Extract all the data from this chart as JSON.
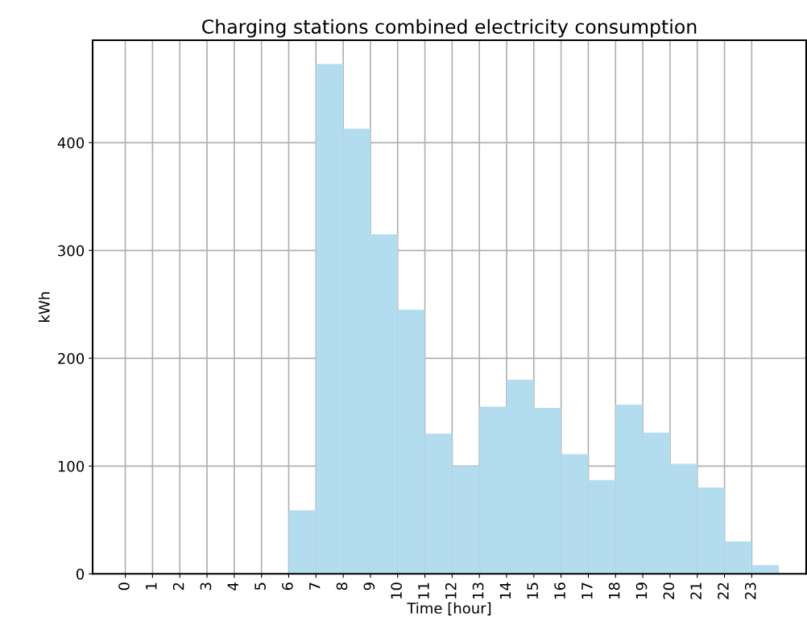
{
  "chart_data": {
    "type": "histogram",
    "title": "Charging stations combined electricity consumption",
    "xlabel": "Time [hour]",
    "ylabel": "kWh",
    "bins": [
      0,
      1,
      2,
      3,
      4,
      5,
      6,
      7,
      8,
      9,
      10,
      11,
      12,
      13,
      14,
      15,
      16,
      17,
      18,
      19,
      20,
      21,
      22,
      23,
      24
    ],
    "values": [
      0,
      0,
      0,
      0,
      0,
      0,
      59,
      473,
      413,
      315,
      245,
      130,
      100,
      155,
      180,
      154,
      111,
      87,
      157,
      131,
      102,
      80,
      30,
      8
    ],
    "color": "#b3dcef",
    "xlim": [
      -1.2,
      25
    ],
    "xticks": [
      0,
      1,
      2,
      3,
      4,
      5,
      6,
      7,
      8,
      9,
      10,
      11,
      12,
      13,
      14,
      15,
      16,
      17,
      18,
      19,
      20,
      21,
      22,
      23
    ],
    "ylim": [
      0,
      495
    ],
    "yticks": [
      0,
      100,
      200,
      300,
      400
    ],
    "grid": true
  }
}
